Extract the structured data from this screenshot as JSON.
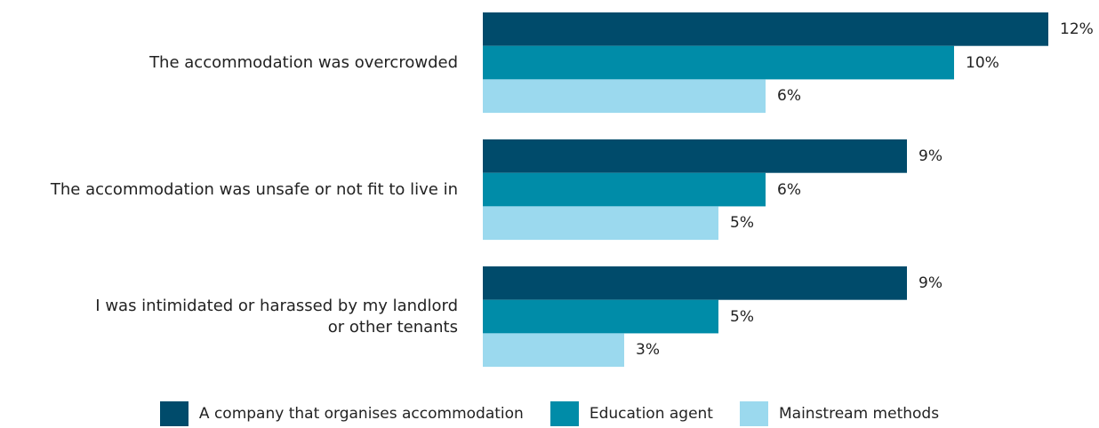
{
  "chart_data": {
    "type": "hbar",
    "categories": [
      "The accommodation was overcrowded",
      "The accommodation was unsafe or not fit to live in",
      "I was intimidated or harassed by my landlord\nor other tenants"
    ],
    "series": [
      {
        "name": "A company that organises accommodation",
        "color": "#004b6b",
        "values": [
          12,
          9,
          9
        ],
        "value_labels": [
          "12%",
          "9%",
          "9%"
        ]
      },
      {
        "name": "Education agent",
        "color": "#008ca8",
        "values": [
          10,
          6,
          5
        ],
        "value_labels": [
          "10%",
          "6%",
          "5%"
        ]
      },
      {
        "name": "Mainstream methods",
        "color": "#9bd9ee",
        "values": [
          6,
          5,
          3
        ],
        "value_labels": [
          "6%",
          "5%",
          "3%"
        ]
      }
    ],
    "legend": "bottom"
  }
}
